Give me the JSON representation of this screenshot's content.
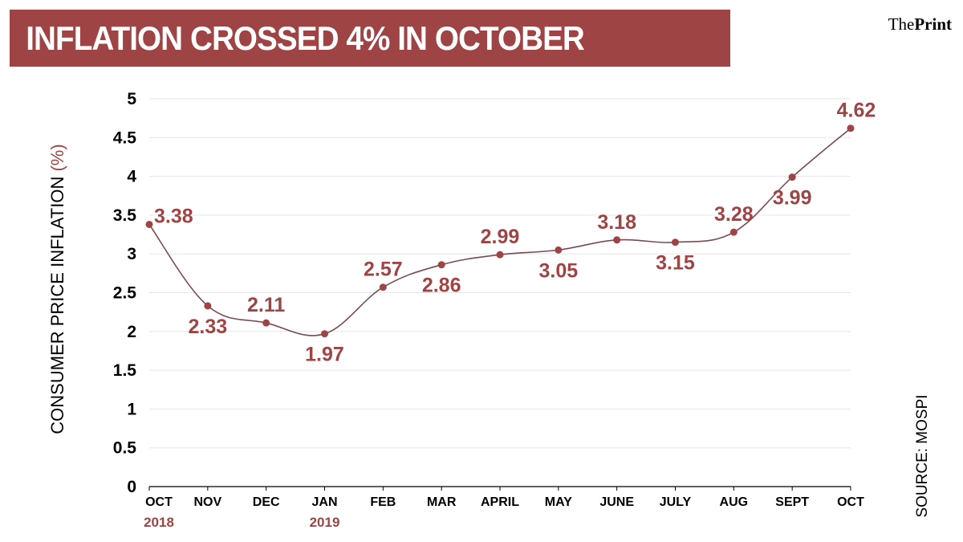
{
  "header": {
    "title": "INFLATION CROSSED 4% IN OCTOBER",
    "logo_prefix": "The",
    "logo_bold": "Print"
  },
  "source_note": "SOURCE: MOSPI",
  "colors": {
    "accent": "#9e4445",
    "line": "#7a4a52",
    "grid": "#e6e6e6"
  },
  "chart_data": {
    "type": "line",
    "title": "INFLATION CROSSED 4% IN OCTOBER",
    "xlabel": "",
    "ylabel": "CONSUMER PRICE INFLATION",
    "ylabel_unit": "(%)",
    "ylim": [
      0,
      5
    ],
    "yticks": [
      0,
      0.5,
      1,
      1.5,
      2,
      2.5,
      3,
      3.5,
      4,
      4.5,
      5
    ],
    "grid": true,
    "categories": [
      "OCT",
      "NOV",
      "DEC",
      "JAN",
      "FEB",
      "MAR",
      "APRIL",
      "MAY",
      "JUNE",
      "JULY",
      "AUG",
      "SEPT",
      "OCT"
    ],
    "year_labels": [
      "2018",
      "",
      "",
      "2019",
      "",
      "",
      "",
      "",
      "",
      "",
      "",
      "",
      ""
    ],
    "series": [
      {
        "name": "Consumer Price Inflation (%)",
        "values": [
          3.38,
          2.33,
          2.11,
          1.97,
          2.57,
          2.86,
          2.99,
          3.05,
          3.18,
          3.15,
          3.28,
          3.99,
          4.62
        ],
        "labels": [
          "3.38",
          "2.33",
          "2.11",
          "1.97",
          "2.57",
          "2.86",
          "2.99",
          "3.05",
          "3.18",
          "3.15",
          "3.28",
          "3.99",
          "4.62"
        ],
        "label_positions": [
          "right",
          "below",
          "above",
          "below",
          "above",
          "below",
          "above",
          "below",
          "above",
          "below",
          "above",
          "below",
          "above"
        ]
      }
    ]
  }
}
